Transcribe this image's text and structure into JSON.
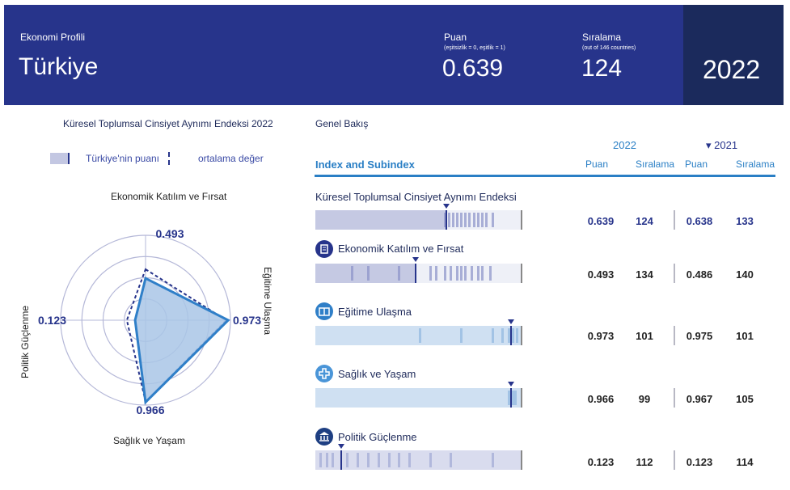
{
  "header": {
    "profile_label": "Ekonomi Profili",
    "country": "Türkiye",
    "score_label": "Puan",
    "score_note": "(eşitsizlik = 0, eşitlik = 1)",
    "score": "0.639",
    "rank_label": "Sıralama",
    "rank_note": "(out of 146 countries)",
    "rank": "124",
    "year": "2022"
  },
  "radar": {
    "title": "Küresel Toplumsal Cinsiyet Aynımı Endeksi 2022",
    "legend_score": "Türkiye'nin puanı",
    "legend_avg": "ortalama değer",
    "axis_top": "Ekonomik Katılım ve Fırsat",
    "axis_right": "Eğitime Ulaşma",
    "axis_bottom": "Sağlık ve Yaşam",
    "axis_left": "Politik Güçlenme",
    "value_top": "0.493",
    "value_right": "0.973",
    "value_bottom": "0.966",
    "value_left": "0.123",
    "colors": {
      "fill": "#a9c6e6",
      "stroke": "#2f7fc8",
      "avg": "#27348b",
      "grid": "#b5b8d8"
    }
  },
  "chart_data": {
    "type": "radar",
    "title": "Küresel Toplumsal Cinsiyet Aynımı Endeksi 2022",
    "categories": [
      "Ekonomik Katılım ve Fırsat",
      "Eğitime Ulaşma",
      "Sağlık ve Yaşam",
      "Politik Güçlenme"
    ],
    "series": [
      {
        "name": "Türkiye'nin puanı",
        "values": [
          0.493,
          0.973,
          0.966,
          0.123
        ]
      },
      {
        "name": "ortalama değer",
        "values": [
          0.6,
          0.95,
          0.96,
          0.22
        ]
      }
    ],
    "rlim": [
      0,
      1
    ]
  },
  "overview": {
    "title": "Genel Bakış",
    "col_header": "Index and Subindex",
    "year_current": "2022",
    "year_prev": "▾ 2021",
    "col_score": "Puan",
    "col_rank": "Sıralama",
    "rows": [
      {
        "label": "Küresel Toplumsal Cinsiyet Aynımı Endeksi",
        "score_2022": "0.639",
        "rank_2022": "124",
        "score_2021": "0.638",
        "rank_2021": "133",
        "marker": 0.63,
        "icon": "none"
      },
      {
        "label": "Ekonomik Katılım ve Fırsat",
        "score_2022": "0.493",
        "rank_2022": "134",
        "score_2021": "0.486",
        "rank_2021": "140",
        "marker": 0.48,
        "icon": "briefcase-icon"
      },
      {
        "label": "Eğitime Ulaşma",
        "score_2022": "0.973",
        "rank_2022": "101",
        "score_2021": "0.975",
        "rank_2021": "101",
        "marker": 0.94,
        "icon": "book-icon"
      },
      {
        "label": "Sağlık ve Yaşam",
        "score_2022": "0.966",
        "rank_2022": "99",
        "score_2021": "0.967",
        "rank_2021": "105",
        "marker": 0.94,
        "icon": "health-cross-icon"
      },
      {
        "label": "Politik Güçlenme",
        "score_2022": "0.123",
        "rank_2022": "112",
        "score_2021": "0.123",
        "rank_2021": "114",
        "marker": 0.12,
        "icon": "government-building-icon"
      }
    ]
  }
}
